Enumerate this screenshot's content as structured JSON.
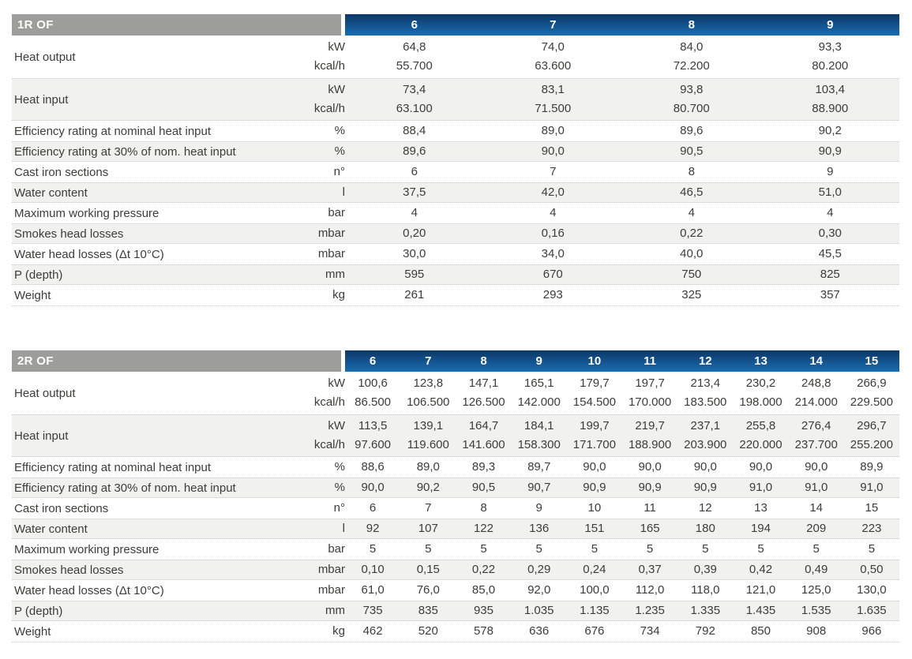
{
  "colors": {
    "header_gray": "#9d9d9c",
    "header_blue_top": "#0d3766",
    "header_blue_bottom": "#1a6db3",
    "row_alt_background": "#f1f1f0",
    "body_text": "#3c3c3b",
    "header_text": "#ffffff",
    "dotted_border": "#c9c9c8"
  },
  "tables": [
    {
      "title": "1R OF",
      "models": [
        "6",
        "7",
        "8",
        "9"
      ],
      "rows": [
        {
          "label": "Heat output",
          "units": [
            "kW",
            "kcal/h"
          ],
          "values": [
            [
              "64,8",
              "74,0",
              "84,0",
              "93,3"
            ],
            [
              "55.700",
              "63.600",
              "72.200",
              "80.200"
            ]
          ]
        },
        {
          "label": "Heat input",
          "units": [
            "kW",
            "kcal/h"
          ],
          "values": [
            [
              "73,4",
              "83,1",
              "93,8",
              "103,4"
            ],
            [
              "63.100",
              "71.500",
              "80.700",
              "88.900"
            ]
          ]
        },
        {
          "label": "Efficiency rating at nominal heat input",
          "units": [
            "%"
          ],
          "values": [
            [
              "88,4",
              "89,0",
              "89,6",
              "90,2"
            ]
          ]
        },
        {
          "label": "Efficiency rating at 30% of nom. heat input",
          "units": [
            "%"
          ],
          "values": [
            [
              "89,6",
              "90,0",
              "90,5",
              "90,9"
            ]
          ]
        },
        {
          "label": "Cast iron sections",
          "units": [
            "n°"
          ],
          "values": [
            [
              "6",
              "7",
              "8",
              "9"
            ]
          ]
        },
        {
          "label": "Water content",
          "units": [
            "l"
          ],
          "values": [
            [
              "37,5",
              "42,0",
              "46,5",
              "51,0"
            ]
          ]
        },
        {
          "label": "Maximum working pressure",
          "units": [
            "bar"
          ],
          "values": [
            [
              "4",
              "4",
              "4",
              "4"
            ]
          ]
        },
        {
          "label": "Smokes head losses",
          "units": [
            "mbar"
          ],
          "values": [
            [
              "0,20",
              "0,16",
              "0,22",
              "0,30"
            ]
          ]
        },
        {
          "label": "Water head losses (Δt 10°C)",
          "units": [
            "mbar"
          ],
          "values": [
            [
              "30,0",
              "34,0",
              "40,0",
              "45,5"
            ]
          ]
        },
        {
          "label": "P (depth)",
          "units": [
            "mm"
          ],
          "values": [
            [
              "595",
              "670",
              "750",
              "825"
            ]
          ]
        },
        {
          "label": "Weight",
          "units": [
            "kg"
          ],
          "values": [
            [
              "261",
              "293",
              "325",
              "357"
            ]
          ]
        }
      ]
    },
    {
      "title": "2R OF",
      "models": [
        "6",
        "7",
        "8",
        "9",
        "10",
        "11",
        "12",
        "13",
        "14",
        "15"
      ],
      "rows": [
        {
          "label": "Heat output",
          "units": [
            "kW",
            "kcal/h"
          ],
          "values": [
            [
              "100,6",
              "123,8",
              "147,1",
              "165,1",
              "179,7",
              "197,7",
              "213,4",
              "230,2",
              "248,8",
              "266,9"
            ],
            [
              "86.500",
              "106.500",
              "126.500",
              "142.000",
              "154.500",
              "170.000",
              "183.500",
              "198.000",
              "214.000",
              "229.500"
            ]
          ]
        },
        {
          "label": "Heat input",
          "units": [
            "kW",
            "kcal/h"
          ],
          "values": [
            [
              "113,5",
              "139,1",
              "164,7",
              "184,1",
              "199,7",
              "219,7",
              "237,1",
              "255,8",
              "276,4",
              "296,7"
            ],
            [
              "97.600",
              "119.600",
              "141.600",
              "158.300",
              "171.700",
              "188.900",
              "203.900",
              "220.000",
              "237.700",
              "255.200"
            ]
          ]
        },
        {
          "label": "Efficiency rating at nominal heat input",
          "units": [
            "%"
          ],
          "values": [
            [
              "88,6",
              "89,0",
              "89,3",
              "89,7",
              "90,0",
              "90,0",
              "90,0",
              "90,0",
              "90,0",
              "89,9"
            ]
          ]
        },
        {
          "label": "Efficiency rating at 30% of nom. heat input",
          "units": [
            "%"
          ],
          "values": [
            [
              "90,0",
              "90,2",
              "90,5",
              "90,7",
              "90,9",
              "90,9",
              "90,9",
              "91,0",
              "91,0",
              "91,0"
            ]
          ]
        },
        {
          "label": "Cast iron sections",
          "units": [
            "n°"
          ],
          "values": [
            [
              "6",
              "7",
              "8",
              "9",
              "10",
              "11",
              "12",
              "13",
              "14",
              "15"
            ]
          ]
        },
        {
          "label": "Water content",
          "units": [
            "l"
          ],
          "values": [
            [
              "92",
              "107",
              "122",
              "136",
              "151",
              "165",
              "180",
              "194",
              "209",
              "223"
            ]
          ]
        },
        {
          "label": "Maximum working pressure",
          "units": [
            "bar"
          ],
          "values": [
            [
              "5",
              "5",
              "5",
              "5",
              "5",
              "5",
              "5",
              "5",
              "5",
              "5"
            ]
          ]
        },
        {
          "label": "Smokes head losses",
          "units": [
            "mbar"
          ],
          "values": [
            [
              "0,10",
              "0,15",
              "0,22",
              "0,29",
              "0,24",
              "0,37",
              "0,39",
              "0,42",
              "0,49",
              "0,50"
            ]
          ]
        },
        {
          "label": "Water head losses (Δt 10°C)",
          "units": [
            "mbar"
          ],
          "values": [
            [
              "61,0",
              "76,0",
              "85,0",
              "92,0",
              "100,0",
              "112,0",
              "118,0",
              "121,0",
              "125,0",
              "130,0"
            ]
          ]
        },
        {
          "label": "P (depth)",
          "units": [
            "mm"
          ],
          "values": [
            [
              "735",
              "835",
              "935",
              "1.035",
              "1.135",
              "1.235",
              "1.335",
              "1.435",
              "1.535",
              "1.635"
            ]
          ]
        },
        {
          "label": "Weight",
          "units": [
            "kg"
          ],
          "values": [
            [
              "462",
              "520",
              "578",
              "636",
              "676",
              "734",
              "792",
              "850",
              "908",
              "966"
            ]
          ]
        }
      ]
    }
  ]
}
